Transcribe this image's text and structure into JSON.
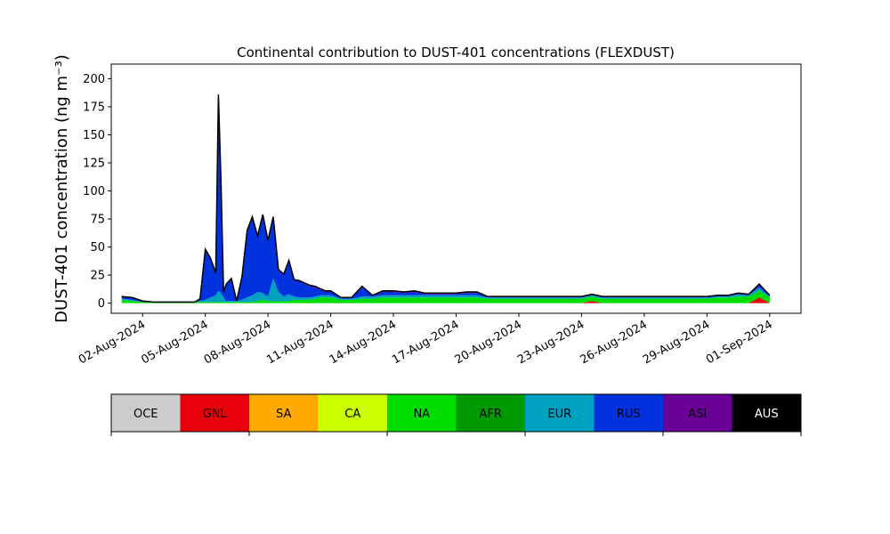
{
  "chart_data": {
    "type": "area",
    "title": "Continental contribution to DUST-401 concentrations (FLEXDUST)",
    "xlabel": "",
    "ylabel": "DUST-401 concentration (ng m⁻³)",
    "ylim": [
      -9,
      213
    ],
    "yticks": [
      0,
      25,
      50,
      75,
      100,
      125,
      150,
      175,
      200
    ],
    "xlim": [
      "2024-07-31T12:00",
      "2024-09-02T12:00"
    ],
    "xticks": [
      "2024-08-02",
      "2024-08-05",
      "2024-08-08",
      "2024-08-11",
      "2024-08-14",
      "2024-08-17",
      "2024-08-20",
      "2024-08-23",
      "2024-08-26",
      "2024-08-29",
      "2024-09-01"
    ],
    "xtick_labels": [
      "02-Aug-2024",
      "05-Aug-2024",
      "08-Aug-2024",
      "11-Aug-2024",
      "14-Aug-2024",
      "17-Aug-2024",
      "20-Aug-2024",
      "23-Aug-2024",
      "26-Aug-2024",
      "29-Aug-2024",
      "01-Sep-2024"
    ],
    "stacking_order": [
      "GNL",
      "NA",
      "EUR",
      "RUS",
      "ASI"
    ],
    "x": [
      "2024-08-01T00:00",
      "2024-08-01T12:00",
      "2024-08-02T00:00",
      "2024-08-02T12:00",
      "2024-08-03T00:00",
      "2024-08-03T12:00",
      "2024-08-04T00:00",
      "2024-08-04T12:00",
      "2024-08-04T18:00",
      "2024-08-05T00:00",
      "2024-08-05T06:00",
      "2024-08-05T12:00",
      "2024-08-05T15:00",
      "2024-08-05T18:00",
      "2024-08-05T21:00",
      "2024-08-06T00:00",
      "2024-08-06T06:00",
      "2024-08-06T12:00",
      "2024-08-06T18:00",
      "2024-08-07T00:00",
      "2024-08-07T06:00",
      "2024-08-07T12:00",
      "2024-08-07T18:00",
      "2024-08-08T00:00",
      "2024-08-08T06:00",
      "2024-08-08T12:00",
      "2024-08-08T18:00",
      "2024-08-09T00:00",
      "2024-08-09T06:00",
      "2024-08-09T12:00",
      "2024-08-09T18:00",
      "2024-08-10T00:00",
      "2024-08-10T06:00",
      "2024-08-10T12:00",
      "2024-08-10T18:00",
      "2024-08-11T00:00",
      "2024-08-11T12:00",
      "2024-08-12T00:00",
      "2024-08-12T12:00",
      "2024-08-13T00:00",
      "2024-08-13T12:00",
      "2024-08-14T00:00",
      "2024-08-14T12:00",
      "2024-08-15T00:00",
      "2024-08-15T12:00",
      "2024-08-16T00:00",
      "2024-08-16T12:00",
      "2024-08-17T00:00",
      "2024-08-17T12:00",
      "2024-08-18T00:00",
      "2024-08-18T12:00",
      "2024-08-19T00:00",
      "2024-08-19T12:00",
      "2024-08-20T00:00",
      "2024-08-20T12:00",
      "2024-08-21T00:00",
      "2024-08-21T12:00",
      "2024-08-22T00:00",
      "2024-08-22T12:00",
      "2024-08-23T00:00",
      "2024-08-23T12:00",
      "2024-08-24T00:00",
      "2024-08-24T12:00",
      "2024-08-25T00:00",
      "2024-08-25T12:00",
      "2024-08-26T00:00",
      "2024-08-26T12:00",
      "2024-08-27T00:00",
      "2024-08-27T12:00",
      "2024-08-28T00:00",
      "2024-08-28T12:00",
      "2024-08-29T00:00",
      "2024-08-29T12:00",
      "2024-08-30T00:00",
      "2024-08-30T12:00",
      "2024-08-31T00:00",
      "2024-08-31T12:00",
      "2024-09-01T00:00"
    ],
    "series": [
      {
        "name": "GNL",
        "color": "#e8000b",
        "values": [
          0,
          0,
          0,
          0,
          0,
          0,
          0,
          0,
          0,
          0,
          0,
          0,
          0,
          0,
          0,
          0,
          0,
          0,
          0,
          0,
          0,
          0,
          0,
          0,
          0,
          0,
          0,
          0,
          0,
          0,
          0,
          0,
          0,
          0,
          0,
          0,
          0,
          0,
          0,
          0,
          0,
          0,
          0,
          0,
          0,
          0,
          0,
          0,
          0,
          0,
          0,
          0,
          0,
          0,
          0,
          0,
          0,
          0,
          0,
          0,
          2,
          0,
          0,
          0,
          0,
          0,
          0,
          0,
          0,
          0,
          0,
          0,
          0,
          0,
          0,
          0,
          5,
          0
        ]
      },
      {
        "name": "NA",
        "color": "#00dd00",
        "values": [
          3,
          2,
          1,
          1,
          1,
          1,
          1,
          1,
          1,
          1,
          1,
          1,
          1,
          1,
          1,
          1,
          1,
          1,
          1,
          1,
          1,
          2,
          3,
          2,
          2,
          2,
          2,
          2,
          3,
          3,
          3,
          3,
          4,
          5,
          5,
          5,
          3,
          3,
          4,
          4,
          5,
          5,
          5,
          5,
          5,
          5,
          5,
          5,
          5,
          5,
          4,
          4,
          4,
          4,
          4,
          4,
          4,
          4,
          4,
          4,
          4,
          4,
          4,
          4,
          4,
          4,
          4,
          4,
          4,
          4,
          4,
          4,
          5,
          5,
          6,
          6,
          6,
          5
        ]
      },
      {
        "name": "EUR",
        "color": "#00a0c0",
        "values": [
          1,
          1,
          0,
          0,
          0,
          0,
          0,
          0,
          1,
          2,
          4,
          6,
          10,
          8,
          4,
          1,
          1,
          1,
          2,
          4,
          6,
          8,
          6,
          4,
          20,
          8,
          4,
          6,
          3,
          2,
          2,
          2,
          2,
          2,
          2,
          2,
          1,
          1,
          2,
          2,
          2,
          2,
          2,
          2,
          2,
          2,
          2,
          2,
          2,
          2,
          1,
          1,
          1,
          1,
          1,
          1,
          1,
          1,
          1,
          1,
          1,
          1,
          1,
          1,
          1,
          1,
          1,
          1,
          1,
          1,
          1,
          1,
          1,
          1,
          2,
          1,
          3,
          1
        ]
      },
      {
        "name": "RUS",
        "color": "#0033dd",
        "values": [
          2,
          2,
          1,
          0,
          0,
          0,
          0,
          0,
          2,
          45,
          35,
          20,
          175,
          100,
          5,
          15,
          20,
          0,
          20,
          60,
          70,
          50,
          70,
          50,
          55,
          20,
          20,
          30,
          15,
          15,
          12,
          10,
          8,
          5,
          3,
          3,
          1,
          1,
          8,
          1,
          3,
          3,
          2,
          3,
          1,
          1,
          1,
          1,
          2,
          2,
          1,
          1,
          1,
          1,
          1,
          1,
          1,
          1,
          1,
          1,
          1,
          1,
          1,
          1,
          1,
          1,
          1,
          1,
          1,
          1,
          1,
          1,
          1,
          1,
          1,
          1,
          3,
          1
        ]
      },
      {
        "name": "ASI",
        "color": "#6a0096",
        "values": [
          0,
          0,
          0,
          0,
          0,
          0,
          0,
          0,
          0,
          0,
          0,
          0,
          0,
          0,
          0,
          0,
          0,
          0,
          0,
          0,
          0,
          0,
          0,
          0,
          0,
          0,
          0,
          0,
          0,
          0,
          1,
          1,
          1,
          1,
          1,
          1,
          0,
          0,
          1,
          0,
          1,
          1,
          1,
          1,
          1,
          1,
          1,
          1,
          1,
          1,
          0,
          0,
          0,
          0,
          0,
          0,
          0,
          0,
          0,
          0,
          0,
          0,
          0,
          0,
          0,
          0,
          0,
          0,
          0,
          0,
          0,
          0,
          0,
          0,
          0,
          0,
          0,
          0
        ]
      }
    ],
    "legend": [
      {
        "name": "OCE",
        "color": "#cccccc",
        "text_color": "#000000"
      },
      {
        "name": "GNL",
        "color": "#e8000b",
        "text_color": "#000000"
      },
      {
        "name": "SA",
        "color": "#ffaa00",
        "text_color": "#000000"
      },
      {
        "name": "CA",
        "color": "#ccff00",
        "text_color": "#000000"
      },
      {
        "name": "NA",
        "color": "#00dd00",
        "text_color": "#000000"
      },
      {
        "name": "AFR",
        "color": "#009900",
        "text_color": "#000000"
      },
      {
        "name": "EUR",
        "color": "#00a0c0",
        "text_color": "#000000"
      },
      {
        "name": "RUS",
        "color": "#0033dd",
        "text_color": "#000000"
      },
      {
        "name": "ASI",
        "color": "#6a0096",
        "text_color": "#000000"
      },
      {
        "name": "AUS",
        "color": "#000000",
        "text_color": "#ffffff"
      }
    ],
    "legend_placement": "bottom"
  }
}
